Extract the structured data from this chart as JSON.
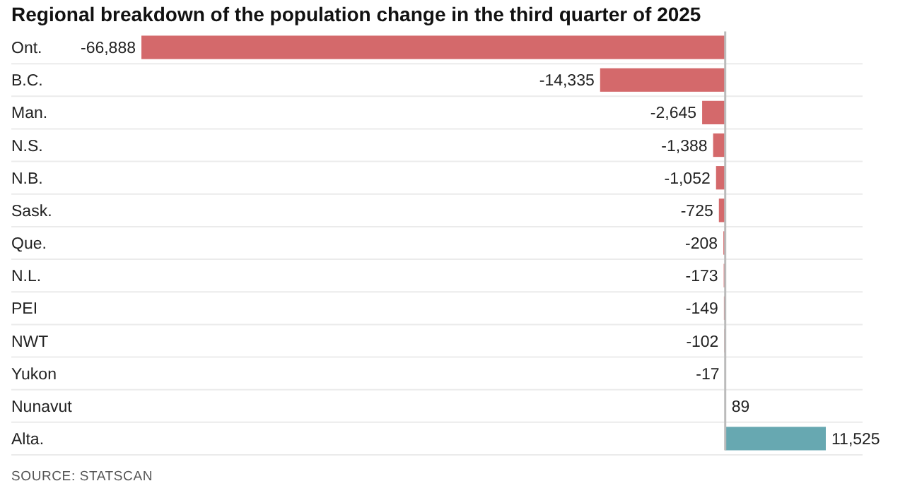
{
  "chart_data": {
    "type": "bar",
    "orientation": "horizontal",
    "title": "Regional breakdown of the population change in the third quarter of 2025",
    "categories": [
      "Ont.",
      "B.C.",
      "Man.",
      "N.S.",
      "N.B.",
      "Sask.",
      "Que.",
      "N.L.",
      "PEI",
      "NWT",
      "Yukon",
      "Nunavut",
      "Alta."
    ],
    "values": [
      -66888,
      -14335,
      -2645,
      -1388,
      -1052,
      -725,
      -208,
      -173,
      -149,
      -102,
      -17,
      89,
      11525
    ],
    "colors": [
      "#d4696b",
      "#d4696b",
      "#d4696b",
      "#d4696b",
      "#d4696b",
      "#d4696b",
      "#d4696b",
      "#d4696b",
      "#d4696b",
      "#d4696b",
      "#d4696b",
      "#67a8b1",
      "#67a8b1"
    ],
    "value_labels": [
      "-66,888",
      "-14,335",
      "-2,645",
      "-1,388",
      "-1,052",
      "-725",
      "-208",
      "-173",
      "-149",
      "-102",
      "-17",
      "89",
      "11,525"
    ],
    "grid": "y",
    "annotations": [
      "SOURCE: STATSCAN"
    ]
  }
}
